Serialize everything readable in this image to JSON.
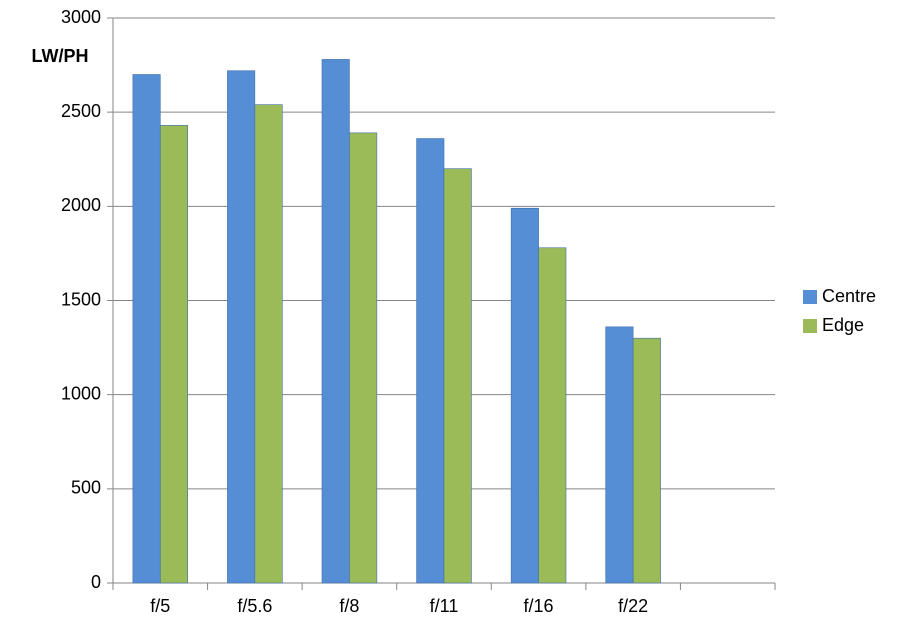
{
  "chart_data": {
    "type": "bar",
    "y_label": "LW/PH",
    "categories": [
      "f/5",
      "f/5.6",
      "f/8",
      "f/11",
      "f/16",
      "f/22",
      null
    ],
    "series": [
      {
        "name": "Centre",
        "color": "#558ed5",
        "values": [
          2700,
          2720,
          2780,
          2360,
          1990,
          1360,
          null
        ]
      },
      {
        "name": "Edge",
        "color": "#9bbb59",
        "values": [
          2430,
          2540,
          2390,
          2200,
          1780,
          1300,
          null
        ]
      }
    ],
    "ylim": [
      0,
      3000
    ],
    "yticks": [
      0,
      500,
      1000,
      1500,
      2000,
      2500,
      3000
    ],
    "grid": true,
    "legend": "right"
  }
}
